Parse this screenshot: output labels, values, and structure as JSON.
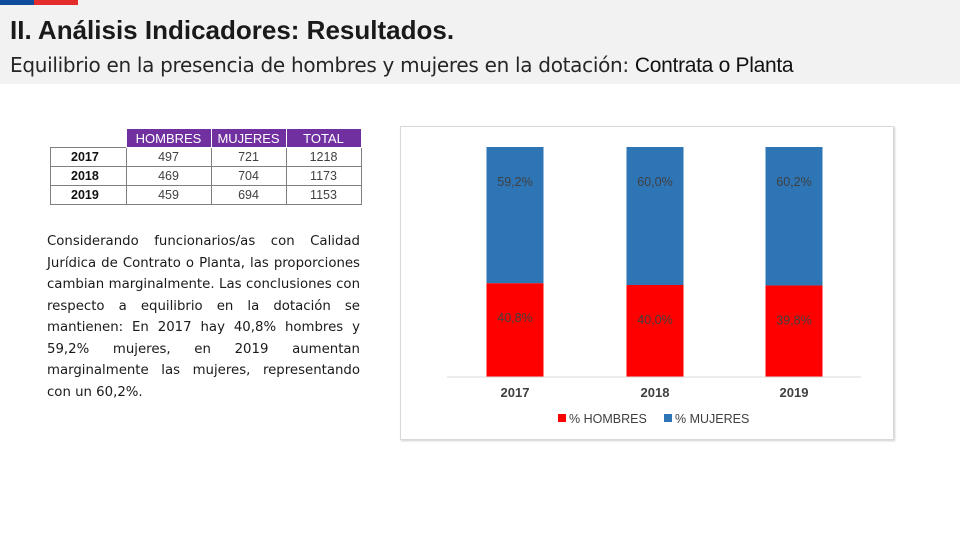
{
  "header": {
    "title": "II. Análisis Indicadores: Resultados.",
    "subtitle_prefix": "Equilibrio en la presencia de hombres y mujeres en la dotación: ",
    "subtitle_highlight": "Contrata o Planta",
    "colors": {
      "flag_blue": "#0f4c9c",
      "flag_red": "#e42c2c"
    }
  },
  "table": {
    "headers": [
      "HOMBRES",
      "MUJERES",
      "TOTAL"
    ],
    "rows": [
      {
        "year": "2017",
        "hombres": "497",
        "mujeres": "721",
        "total": "1218"
      },
      {
        "year": "2018",
        "hombres": "469",
        "mujeres": "704",
        "total": "1173"
      },
      {
        "year": "2019",
        "hombres": "459",
        "mujeres": "694",
        "total": "1153"
      }
    ],
    "header_color": "#7030a0"
  },
  "paragraph": "Considerando funcionarios/as con Calidad Jurídica de Contrato o Planta, las proporciones cambian marginalmente. Las conclusiones con respecto a equilibrio en la dotación se mantienen: En 2017 hay 40,8% hombres y 59,2% mujeres, en 2019 aumentan marginalmente las mujeres, representando con un 60,2%.",
  "chart_data": {
    "type": "bar",
    "stacked": true,
    "percent_stacked": true,
    "categories": [
      "2017",
      "2018",
      "2019"
    ],
    "series": [
      {
        "name": "% HOMBRES",
        "values": [
          40.8,
          40.0,
          39.8
        ],
        "labels": [
          "40,8%",
          "40,0%",
          "39,8%"
        ],
        "color": "#ff0000"
      },
      {
        "name": "% MUJERES",
        "values": [
          59.2,
          60.0,
          60.2
        ],
        "labels": [
          "59,2%",
          "60,0%",
          "60,2%"
        ],
        "color": "#2e75b6"
      }
    ],
    "ylim": [
      0,
      100
    ],
    "legend": "bottom",
    "grid": false
  }
}
